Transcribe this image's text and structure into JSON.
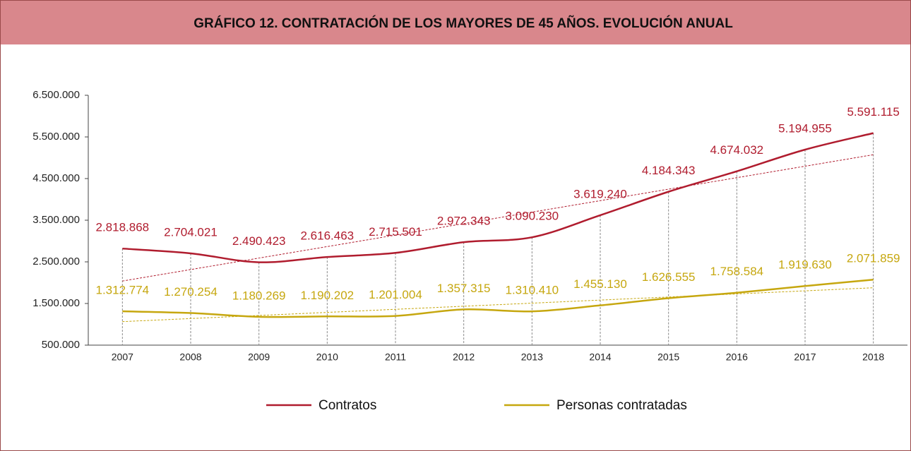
{
  "chart_data": {
    "type": "line",
    "title": "GRÁFICO 12. CONTRATACIÓN DE LOS MAYORES DE 45 AÑOS. EVOLUCIÓN ANUAL",
    "categories": [
      "2007",
      "2008",
      "2009",
      "2010",
      "2011",
      "2012",
      "2013",
      "2014",
      "2015",
      "2016",
      "2017",
      "2018"
    ],
    "series": [
      {
        "name": "Contratos",
        "color": "#b01c2e",
        "values": [
          2818868,
          2704021,
          2490423,
          2616463,
          2715501,
          2972343,
          3090230,
          3619240,
          4184343,
          4674032,
          5194955,
          5591115
        ],
        "value_labels": [
          "2.818.868",
          "2.704.021",
          "2.490.423",
          "2.616.463",
          "2.715.501",
          "2.972.343",
          "3.090.230",
          "3.619.240",
          "4.184.343",
          "4.674.032",
          "5.194.955",
          "5.591.115"
        ]
      },
      {
        "name": "Personas contratadas",
        "color": "#c6a70f",
        "values": [
          1312774,
          1270254,
          1180269,
          1190202,
          1201004,
          1357315,
          1310410,
          1455130,
          1626555,
          1758584,
          1919630,
          2071859
        ],
        "value_labels": [
          "1.312.774",
          "1.270.254",
          "1.180.269",
          "1.190.202",
          "1.201.004",
          "1.357.315",
          "1.310.410",
          "1.455.130",
          "1.626.555",
          "1.758.584",
          "1.919.630",
          "2.071.859"
        ]
      }
    ],
    "ylim": [
      500000,
      6500000
    ],
    "yticks": [
      {
        "value": 500000,
        "label": "500.000"
      },
      {
        "value": 1500000,
        "label": "1.500.000"
      },
      {
        "value": 2500000,
        "label": "2.500.000"
      },
      {
        "value": 3500000,
        "label": "3.500.000"
      },
      {
        "value": 4500000,
        "label": "4.500.000"
      },
      {
        "value": 5500000,
        "label": "5.500.000"
      },
      {
        "value": 6500000,
        "label": "6.500.000"
      }
    ],
    "trendline": true,
    "drop_lines": true,
    "legend": "bottom"
  }
}
